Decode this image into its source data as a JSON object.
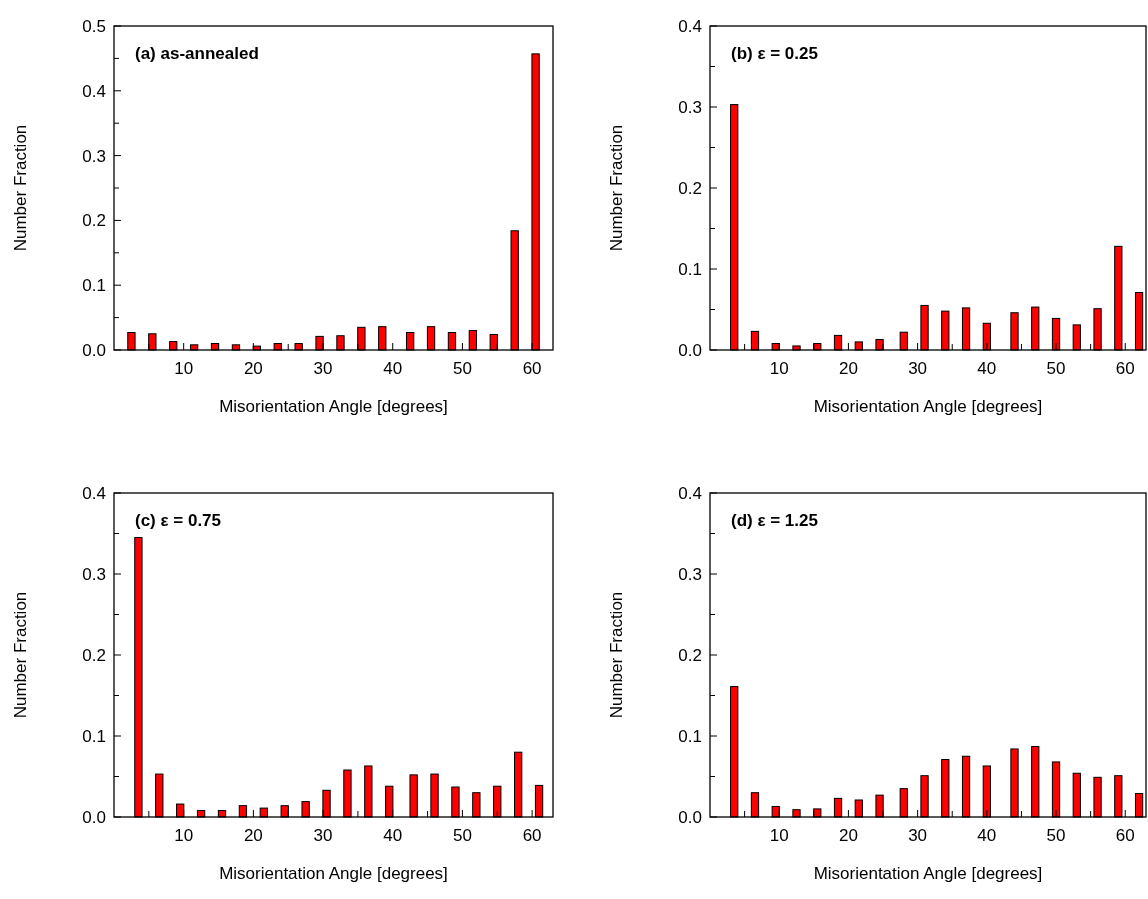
{
  "chart_data": [
    {
      "type": "bar",
      "title": "(a) as-annealed",
      "xlabel": "Misorientation Angle [degrees]",
      "ylabel": "Number Fraction",
      "color": "#ff0000",
      "x": [
        2.5,
        5.5,
        8.5,
        11.5,
        14.5,
        17.5,
        20.5,
        23.5,
        26.5,
        29.5,
        32.5,
        35.5,
        38.5,
        42.5,
        45.5,
        48.5,
        51.5,
        54.5,
        57.5,
        60.5
      ],
      "values": [
        0.027,
        0.025,
        0.013,
        0.008,
        0.01,
        0.008,
        0.006,
        0.01,
        0.01,
        0.021,
        0.022,
        0.035,
        0.036,
        0.027,
        0.036,
        0.027,
        0.03,
        0.024,
        0.184,
        0.457
      ],
      "xlim": [
        0,
        63
      ],
      "ylim": [
        0,
        0.5
      ],
      "xticks": [
        {
          "value": 5,
          "label": null
        },
        10,
        {
          "value": 15,
          "label": null
        },
        20,
        {
          "value": 25,
          "label": null
        },
        30,
        {
          "value": 35,
          "label": null
        },
        40,
        {
          "value": 45,
          "label": null
        },
        50,
        {
          "value": 55,
          "label": null
        },
        60
      ],
      "yticks": [
        {
          "value": 0,
          "label": "0.0"
        },
        {
          "value": 0.05,
          "label": null
        },
        0.1,
        {
          "value": 0.15,
          "label": null
        },
        0.2,
        {
          "value": 0.25,
          "label": null
        },
        0.3,
        {
          "value": 0.35,
          "label": null
        },
        0.4,
        {
          "value": 0.45,
          "label": null
        },
        0.5
      ]
    },
    {
      "type": "bar",
      "title": "(b) ε = 0.25",
      "xlabel": "Misorientation Angle [degrees]",
      "ylabel": "Number Fraction",
      "color": "#ff0000",
      "x": [
        3.5,
        6.5,
        9.5,
        12.5,
        15.5,
        18.5,
        21.5,
        24.5,
        28,
        31,
        34,
        37,
        40,
        44,
        47,
        50,
        53,
        56,
        59,
        62
      ],
      "values": [
        0.303,
        0.023,
        0.008,
        0.005,
        0.008,
        0.018,
        0.01,
        0.013,
        0.022,
        0.055,
        0.048,
        0.052,
        0.033,
        0.046,
        0.053,
        0.039,
        0.031,
        0.051,
        0.128,
        0.071
      ],
      "xlim": [
        0,
        63
      ],
      "ylim": [
        0,
        0.4
      ],
      "xticks": [
        {
          "value": 5,
          "label": null
        },
        10,
        {
          "value": 15,
          "label": null
        },
        20,
        {
          "value": 25,
          "label": null
        },
        30,
        {
          "value": 35,
          "label": null
        },
        40,
        {
          "value": 45,
          "label": null
        },
        50,
        {
          "value": 55,
          "label": null
        },
        60
      ],
      "yticks": [
        {
          "value": 0,
          "label": "0.0"
        },
        {
          "value": 0.05,
          "label": null
        },
        0.1,
        {
          "value": 0.15,
          "label": null
        },
        0.2,
        {
          "value": 0.25,
          "label": null
        },
        0.3,
        {
          "value": 0.35,
          "label": null
        },
        0.4
      ]
    },
    {
      "type": "bar",
      "title": "(c) ε = 0.75",
      "xlabel": "Misorientation Angle [degrees]",
      "ylabel": "Number Fraction",
      "color": "#ff0000",
      "x": [
        3.5,
        6.5,
        9.5,
        12.5,
        15.5,
        18.5,
        21.5,
        24.5,
        27.5,
        30.5,
        33.5,
        36.5,
        39.5,
        43,
        46,
        49,
        52,
        55,
        58,
        61
      ],
      "values": [
        0.345,
        0.053,
        0.016,
        0.008,
        0.008,
        0.014,
        0.011,
        0.014,
        0.019,
        0.033,
        0.058,
        0.063,
        0.038,
        0.052,
        0.053,
        0.037,
        0.03,
        0.038,
        0.08,
        0.039
      ],
      "xlim": [
        0,
        63
      ],
      "ylim": [
        0,
        0.4
      ],
      "xticks": [
        {
          "value": 5,
          "label": null
        },
        10,
        {
          "value": 15,
          "label": null
        },
        20,
        {
          "value": 25,
          "label": null
        },
        30,
        {
          "value": 35,
          "label": null
        },
        40,
        {
          "value": 45,
          "label": null
        },
        50,
        {
          "value": 55,
          "label": null
        },
        60
      ],
      "yticks": [
        {
          "value": 0,
          "label": "0.0"
        },
        {
          "value": 0.05,
          "label": null
        },
        0.1,
        {
          "value": 0.15,
          "label": null
        },
        0.2,
        {
          "value": 0.25,
          "label": null
        },
        0.3,
        {
          "value": 0.35,
          "label": null
        },
        0.4
      ]
    },
    {
      "type": "bar",
      "title": "(d) ε = 1.25",
      "xlabel": "Misorientation Angle [degrees]",
      "ylabel": "Number Fraction",
      "color": "#ff0000",
      "x": [
        3.5,
        6.5,
        9.5,
        12.5,
        15.5,
        18.5,
        21.5,
        24.5,
        28,
        31,
        34,
        37,
        40,
        44,
        47,
        50,
        53,
        56,
        59,
        62
      ],
      "values": [
        0.161,
        0.03,
        0.013,
        0.009,
        0.01,
        0.023,
        0.021,
        0.027,
        0.035,
        0.051,
        0.071,
        0.075,
        0.063,
        0.084,
        0.087,
        0.068,
        0.054,
        0.049,
        0.051,
        0.029
      ],
      "xlim": [
        0,
        63
      ],
      "ylim": [
        0,
        0.4
      ],
      "xticks": [
        {
          "value": 5,
          "label": null
        },
        10,
        {
          "value": 15,
          "label": null
        },
        20,
        {
          "value": 25,
          "label": null
        },
        30,
        {
          "value": 35,
          "label": null
        },
        40,
        {
          "value": 45,
          "label": null
        },
        50,
        {
          "value": 55,
          "label": null
        },
        60
      ],
      "yticks": [
        {
          "value": 0,
          "label": "0.0"
        },
        {
          "value": 0.05,
          "label": null
        },
        0.1,
        {
          "value": 0.15,
          "label": null
        },
        0.2,
        {
          "value": 0.25,
          "label": null
        },
        0.3,
        {
          "value": 0.35,
          "label": null
        },
        0.4
      ]
    }
  ]
}
